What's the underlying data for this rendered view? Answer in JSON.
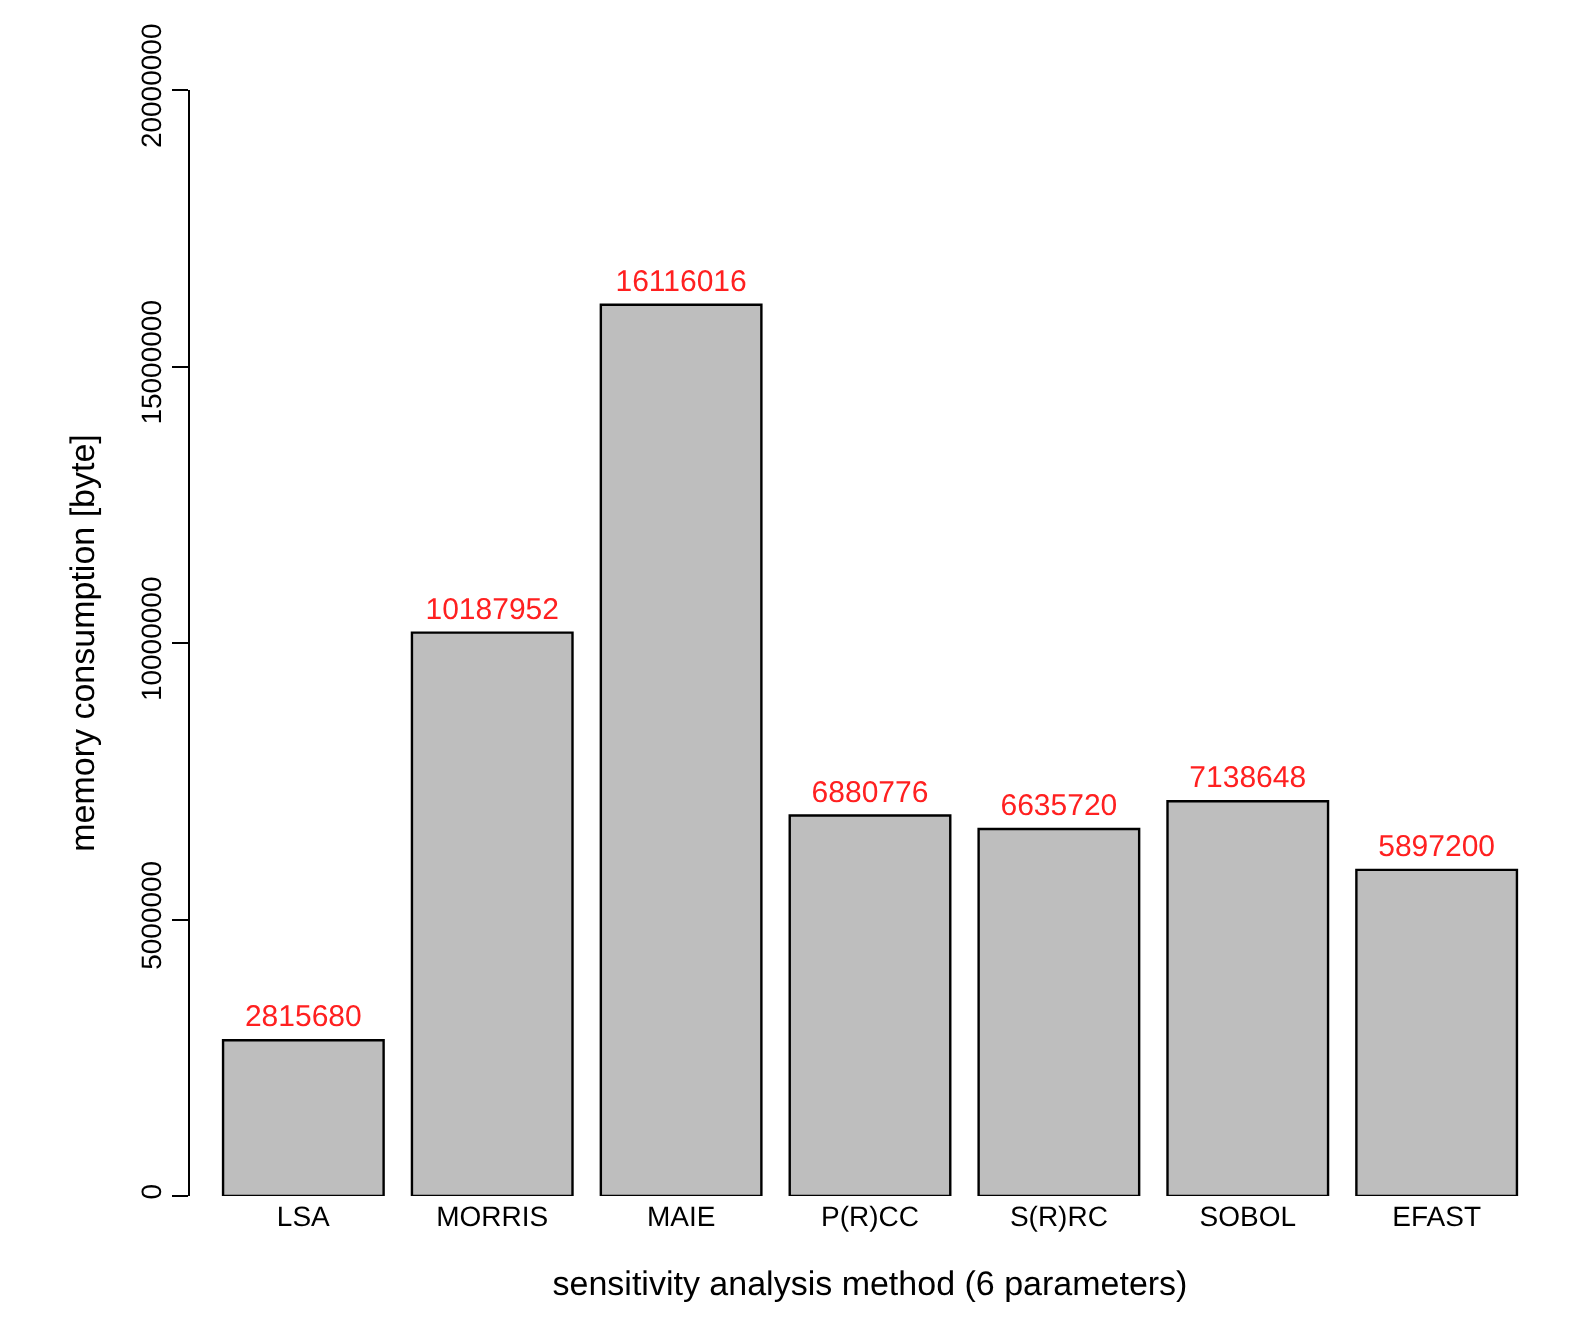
{
  "chart_data": {
    "type": "bar",
    "xlabel": "sensitivity analysis method (6 parameters)",
    "ylabel": "memory consumption [byte]",
    "categories": [
      "LSA",
      "MORRIS",
      "MAIE",
      "P(R)CC",
      "S(R)RC",
      "SOBOL",
      "EFAST"
    ],
    "values": [
      2815680,
      10187952,
      16116016,
      6880776,
      6635720,
      7138648,
      5897200
    ],
    "color": "#bebebe",
    "ylim": [
      0,
      20000000
    ],
    "yticks": [
      0,
      5000000,
      10000000,
      15000000,
      20000000
    ],
    "data_labels": true
  }
}
